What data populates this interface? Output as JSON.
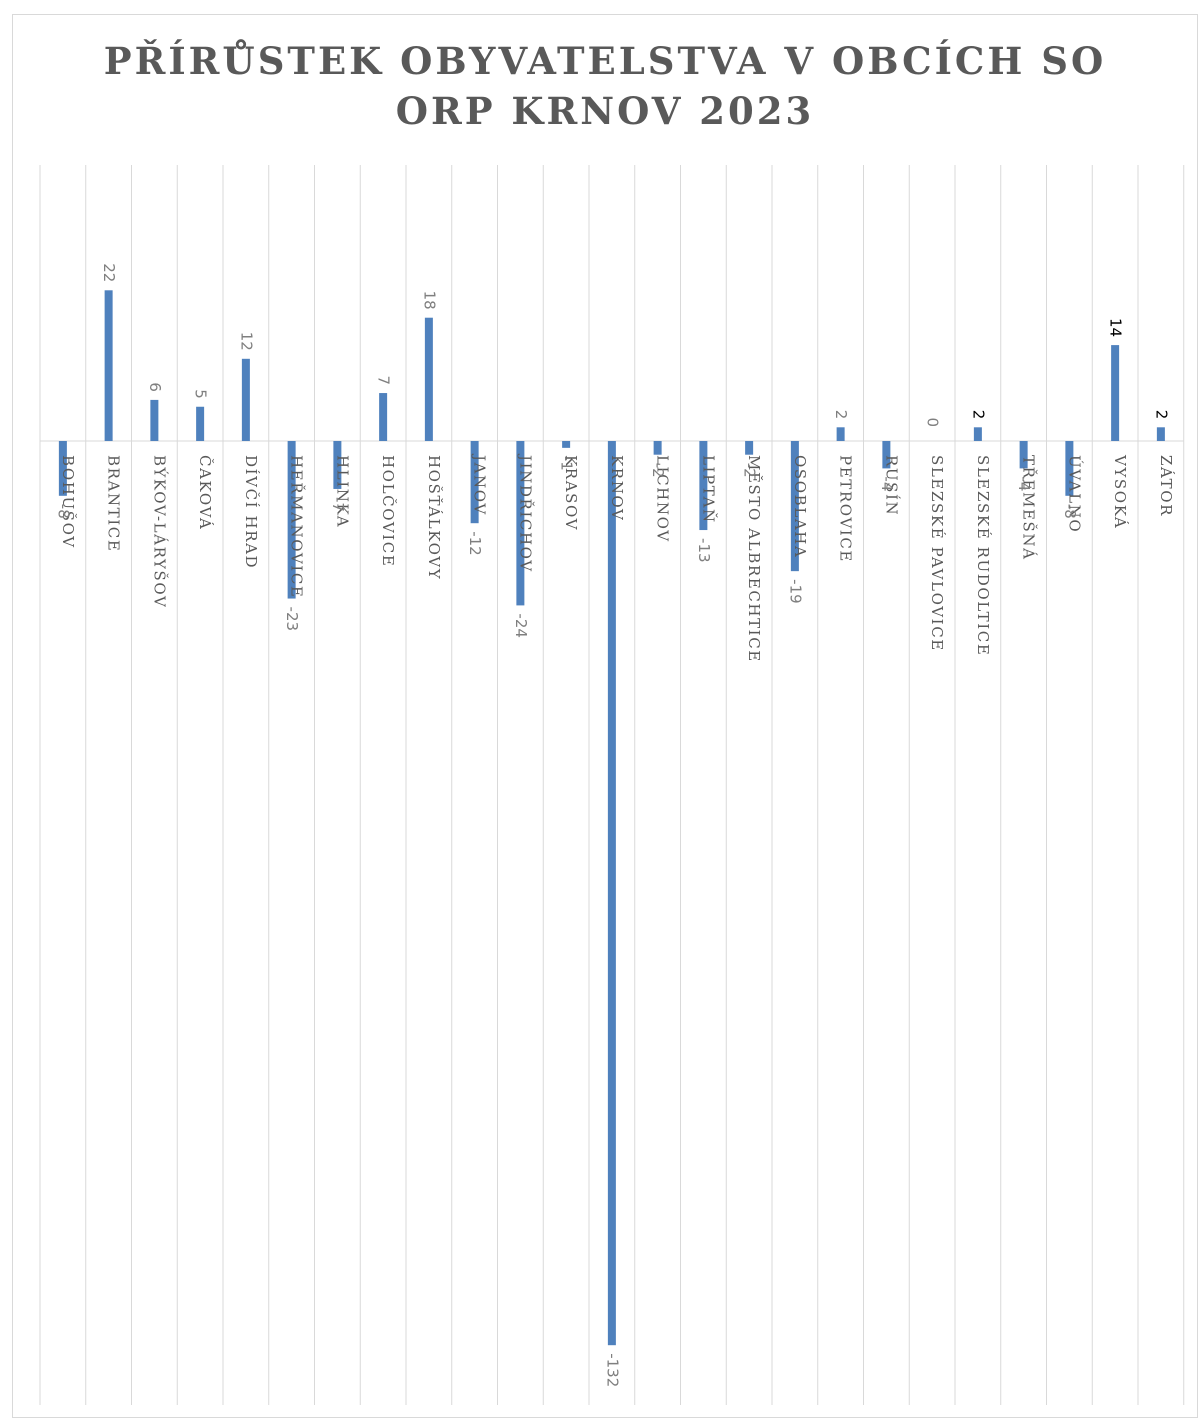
{
  "chart_data": {
    "type": "bar",
    "title": "PŘÍRŮSTEK OBYVATELSTVA V OBCÍCH SO ORP KRNOV 2023",
    "title_lines": [
      "PŘÍRŮSTEK OBYVATELSTVA V OBCÍCH SO",
      "ORP KRNOV 2023"
    ],
    "categories": [
      "BOHUŠOV",
      "BRANTICE",
      "BÝKOV-LÁRYŠOV",
      "ČAKOVÁ",
      "DÍVČÍ HRAD",
      "HEŘMANOVICE",
      "HLINKA",
      "HOLČOVICE",
      "HOŠŤÁLKOVY",
      "JANOV",
      "JINDŘICHOV",
      "KRASOV",
      "KRNOV",
      "LICHNOV",
      "LIPTAŇ",
      "MĚSTO ALBRECHTICE",
      "OSOBLAHA",
      "PETROVICE",
      "RUSÍN",
      "SLEZSKÉ PAVLOVICE",
      "SLEZSKÉ RUDOLTICE",
      "TŘEMEŠNÁ",
      "ÚVALNO",
      "VYSOKÁ",
      "ZÁTOR"
    ],
    "values": [
      -8,
      22,
      6,
      5,
      12,
      -23,
      -7,
      7,
      18,
      -12,
      -24,
      -1,
      -132,
      -2,
      -13,
      -2,
      -19,
      2,
      -4,
      0,
      2,
      -4,
      -8,
      14,
      2
    ],
    "value_labels": [
      "-8",
      "22",
      "6",
      "5",
      "12",
      "-23",
      "-7",
      "7",
      "18",
      "-12",
      "-24",
      "-1",
      "-132",
      "-2",
      "-13",
      "-2",
      "-19",
      "2",
      "-4",
      "0",
      "2",
      "-4",
      "-8",
      "14",
      "2"
    ],
    "dark_labels": [
      "SLEZSKÉ RUDOLTICE",
      "VYSOKÁ",
      "ZÁTOR"
    ],
    "bar_color": "#4f81bd",
    "ylim": [
      -140,
      30
    ],
    "grid": "vertical-category-separators",
    "xlabel": "",
    "ylabel": "",
    "legend": "none"
  }
}
